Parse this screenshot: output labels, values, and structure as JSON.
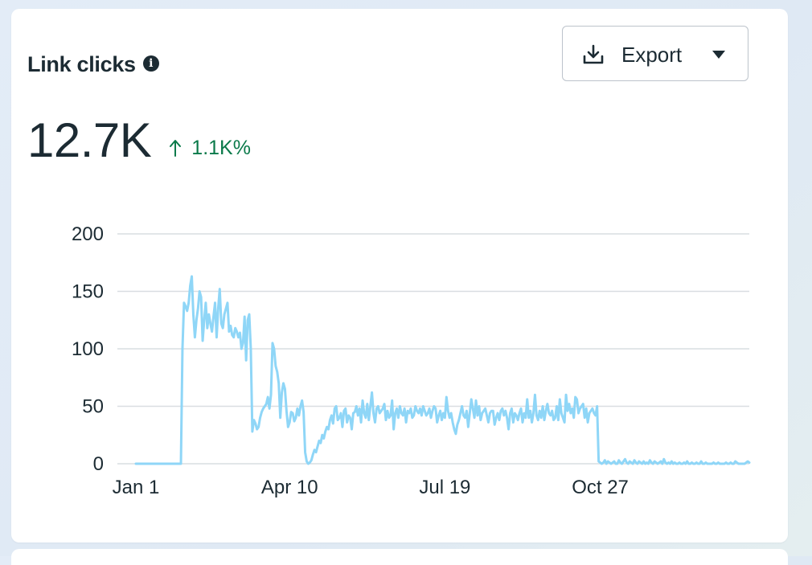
{
  "card": {
    "title": "Link clicks",
    "info_icon": "info-icon",
    "export_label": "Export",
    "export_icon": "download-icon",
    "export_caret_icon": "caret-down-icon",
    "metric_value": "12.7K",
    "delta_text": "1.1K%",
    "delta_icon": "arrow-up-icon",
    "delta_color": "#0b7a4a"
  },
  "chart_data": {
    "type": "line",
    "title": "",
    "xlabel": "",
    "ylabel": "",
    "ylim": [
      0,
      200
    ],
    "y_ticks": [
      "0",
      "50",
      "100",
      "150",
      "200"
    ],
    "x_ticks": [
      "Jan 1",
      "Apr 10",
      "Jul 19",
      "Oct 27"
    ],
    "x_tick_days": [
      0,
      99,
      199,
      299
    ],
    "grid": true,
    "line_color": "#8fd6f7",
    "series": [
      {
        "values": [
          0,
          0,
          0,
          0,
          0,
          0,
          0,
          0,
          0,
          0,
          0,
          0,
          0,
          0,
          0,
          0,
          0,
          0,
          0,
          0,
          0,
          0,
          0,
          0,
          0,
          0,
          0,
          0,
          0,
          0,
          100,
          140,
          137,
          133,
          140,
          155,
          163,
          130,
          110,
          125,
          135,
          150,
          145,
          107,
          125,
          140,
          118,
          130,
          122,
          115,
          128,
          140,
          110,
          135,
          152,
          122,
          118,
          130,
          135,
          140,
          115,
          120,
          112,
          110,
          118,
          115,
          110,
          114,
          100,
          105,
          128,
          90,
          125,
          130,
          100,
          28,
          38,
          35,
          30,
          32,
          40,
          45,
          48,
          50,
          52,
          58,
          48,
          60,
          105,
          100,
          85,
          80,
          70,
          40,
          62,
          70,
          65,
          46,
          32,
          36,
          45,
          44,
          37,
          40,
          48,
          42,
          50,
          55,
          45,
          10,
          2,
          0,
          1,
          3,
          8,
          12,
          10,
          15,
          20,
          18,
          25,
          22,
          28,
          32,
          30,
          38,
          42,
          35,
          48,
          50,
          38,
          40,
          44,
          32,
          46,
          48,
          36,
          42,
          40,
          30,
          44,
          45,
          50,
          42,
          48,
          36,
          55,
          44,
          40,
          52,
          38,
          50,
          62,
          44,
          36,
          48,
          50,
          44,
          46,
          48,
          52,
          38,
          46,
          40,
          42,
          55,
          30,
          44,
          48,
          40,
          50,
          44,
          42,
          48,
          36,
          46,
          44,
          48,
          40,
          42,
          50,
          46,
          44,
          48,
          42,
          50,
          46,
          42,
          44,
          48,
          40,
          46,
          50,
          48,
          36,
          42,
          46,
          38,
          44,
          40,
          58,
          46,
          40,
          44,
          36,
          30,
          26,
          34,
          38,
          44,
          50,
          42,
          40,
          46,
          32,
          44,
          56,
          48,
          40,
          55,
          42,
          50,
          38,
          44,
          46,
          48,
          42,
          36,
          44,
          46,
          46,
          34,
          40,
          44,
          38,
          46,
          48,
          42,
          46,
          40,
          30,
          44,
          48,
          36,
          44,
          42,
          38,
          44,
          48,
          36,
          44,
          40,
          56,
          40,
          46,
          36,
          44,
          60,
          42,
          38,
          46,
          40,
          50,
          38,
          46,
          52,
          44,
          42,
          46,
          38,
          40,
          50,
          38,
          56,
          44,
          40,
          36,
          60,
          46,
          52,
          44,
          48,
          40,
          58,
          56,
          44,
          48,
          50,
          52,
          40,
          48,
          36,
          44,
          46,
          48,
          44,
          42,
          50,
          2,
          1,
          0,
          1,
          3,
          0,
          2,
          1,
          0,
          1,
          2,
          0,
          0,
          3,
          1,
          0,
          2,
          4,
          1,
          0,
          2,
          1,
          0,
          3,
          1,
          0,
          2,
          1,
          0,
          2,
          0,
          1,
          0,
          3,
          1,
          0,
          2,
          1,
          0,
          1,
          2,
          0,
          4,
          1,
          0,
          1,
          0,
          2,
          0,
          1,
          0,
          0,
          1,
          0,
          0,
          1,
          0,
          2,
          0,
          0,
          1,
          0,
          0,
          1,
          0,
          0,
          2,
          0,
          0,
          1,
          0,
          0,
          0,
          0,
          1,
          0,
          0,
          1,
          0,
          0,
          0,
          0,
          1,
          0,
          0,
          1,
          0,
          0,
          2,
          1,
          0,
          0,
          0,
          0,
          0,
          1,
          2,
          1
        ]
      }
    ]
  }
}
